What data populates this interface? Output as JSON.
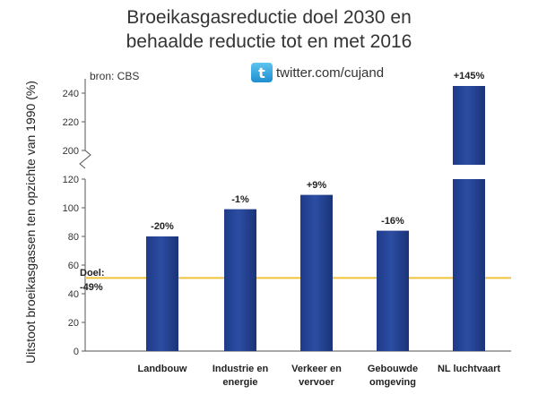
{
  "title_line1": "Broeikasgasreductie doel 2030 en",
  "title_line2": "behaalde reductie tot en met 2016",
  "source": "bron:  CBS",
  "twitter": {
    "icon": "twitter-bird-icon",
    "handle": "twitter.com/cujand"
  },
  "chart_data": {
    "type": "bar",
    "title": "Broeikasgasreductie doel 2030 en behaalde reductie tot en met 2016",
    "ylabel": "Uitstoot broeikasgassen ten opzichte van 1990 (%)",
    "categories": [
      "Landbouw",
      "Industrie en energie",
      "Verkeer en vervoer",
      "Gebouwde omgeving",
      "NL luchtvaart"
    ],
    "category_lines": [
      [
        "Landbouw"
      ],
      [
        "Industrie en",
        "energie"
      ],
      [
        "Verkeer en",
        "vervoer"
      ],
      [
        "Gebouwde",
        "omgeving"
      ],
      [
        "NL luchtvaart"
      ]
    ],
    "values": [
      80,
      99,
      109,
      84,
      245
    ],
    "data_labels": [
      "-20%",
      "-1%",
      "+9%",
      "-16%",
      "+145%"
    ],
    "yticks": [
      0,
      20,
      40,
      60,
      80,
      100,
      120,
      200,
      220,
      240
    ],
    "axis_break": [
      120,
      200
    ],
    "ylim": [
      0,
      250
    ],
    "reference_line": {
      "value": 51,
      "label_line1": "Doel:",
      "label_line2": "-49%",
      "color": "#f0c23b"
    },
    "bar_color": "#2c4da3",
    "grid": false
  }
}
